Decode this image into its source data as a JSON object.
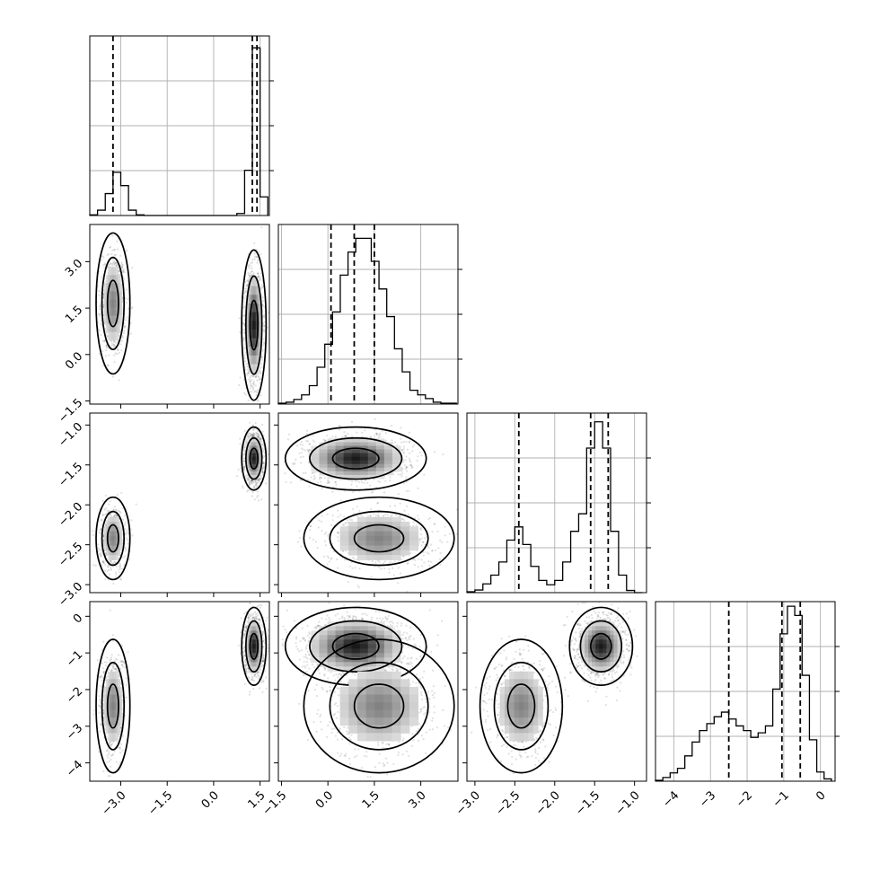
{
  "chart_data": {
    "type": "corner",
    "grid": true,
    "colors": {
      "ink": "#000000",
      "grid": "#b0b0b0",
      "points": "#808080"
    },
    "parameters": [
      {
        "index": 0,
        "range": [
          -4.0,
          1.8
        ],
        "ticks": [
          "−3.0",
          "−1.5",
          "0.0",
          "1.5"
        ],
        "tick_values": [
          -3.0,
          -1.5,
          0.0,
          1.5
        ]
      },
      {
        "index": 1,
        "range": [
          -1.6,
          4.2
        ],
        "ticks": [
          "−1.5",
          "0.0",
          "1.5",
          "3.0"
        ],
        "tick_values": [
          -1.5,
          0.0,
          1.5,
          3.0
        ]
      },
      {
        "index": 2,
        "range": [
          -3.1,
          -0.85
        ],
        "ticks": [
          "−3.0",
          "−2.5",
          "−2.0",
          "−1.5",
          "−1.0"
        ],
        "tick_values": [
          -3.0,
          -2.5,
          -2.0,
          -1.5,
          -1.0
        ]
      },
      {
        "index": 3,
        "range": [
          -4.5,
          0.4
        ],
        "ticks": [
          "−4",
          "−3",
          "−2",
          "−1",
          "0"
        ],
        "tick_values": [
          -4,
          -3,
          -2,
          -1,
          0
        ]
      }
    ],
    "histograms": [
      {
        "param": 0,
        "bins": [
          -4.0,
          -3.75,
          -3.5,
          -3.25,
          -3.0,
          -2.75,
          -2.5,
          -2.25,
          -2.0,
          -1.75,
          -1.5,
          -1.25,
          -1.0,
          -0.75,
          -0.5,
          -0.25,
          0.0,
          0.25,
          0.5,
          0.75,
          1.0,
          1.25,
          1.5,
          1.75
        ],
        "counts": [
          1,
          8,
          33,
          65,
          45,
          8,
          1,
          0,
          0,
          0,
          0,
          0,
          0,
          0,
          0,
          0,
          0,
          0,
          0,
          3,
          68,
          252,
          28
        ],
        "ymax": 270,
        "quantiles": [
          -3.25,
          1.25,
          1.4
        ]
      },
      {
        "param": 1,
        "bins": [
          -1.6,
          -1.35,
          -1.1,
          -0.85,
          -0.6,
          -0.35,
          -0.1,
          0.15,
          0.4,
          0.65,
          0.9,
          1.15,
          1.4,
          1.65,
          1.9,
          2.15,
          2.4,
          2.65,
          2.9,
          3.15,
          3.4,
          3.65,
          3.9,
          4.15
        ],
        "counts": [
          1,
          2,
          5,
          10,
          20,
          40,
          65,
          100,
          140,
          165,
          180,
          180,
          155,
          125,
          95,
          60,
          35,
          15,
          10,
          6,
          2,
          1,
          1
        ],
        "ymax": 195,
        "quantiles": [
          0.1,
          0.85,
          1.5
        ]
      },
      {
        "param": 2,
        "bins": [
          -3.1,
          -3.0,
          -2.9,
          -2.8,
          -2.7,
          -2.6,
          -2.5,
          -2.4,
          -2.3,
          -2.2,
          -2.1,
          -2.0,
          -1.9,
          -1.8,
          -1.7,
          -1.6,
          -1.5,
          -1.4,
          -1.3,
          -1.2,
          -1.1,
          -1.0,
          -0.9
        ],
        "counts": [
          2,
          6,
          20,
          40,
          70,
          120,
          150,
          110,
          60,
          28,
          18,
          28,
          70,
          140,
          180,
          330,
          390,
          330,
          140,
          40,
          5,
          0
        ],
        "ymax": 410,
        "quantiles": [
          -2.45,
          -1.55,
          -1.33
        ]
      },
      {
        "param": 3,
        "bins": [
          -4.5,
          -4.3,
          -4.1,
          -3.9,
          -3.7,
          -3.5,
          -3.3,
          -3.1,
          -2.9,
          -2.7,
          -2.5,
          -2.3,
          -2.1,
          -1.9,
          -1.7,
          -1.5,
          -1.3,
          -1.1,
          -0.9,
          -0.7,
          -0.5,
          -0.3,
          -0.1,
          0.1,
          0.3
        ],
        "counts": [
          2,
          8,
          18,
          28,
          55,
          85,
          110,
          125,
          140,
          150,
          135,
          120,
          110,
          95,
          105,
          120,
          200,
          320,
          380,
          360,
          230,
          90,
          20,
          5
        ],
        "ymax": 390,
        "quantiles": [
          -2.5,
          -1.05,
          -0.55
        ]
      }
    ],
    "pairs": [
      {
        "x": 0,
        "y": 1,
        "modes": [
          {
            "cx": -3.25,
            "cy": 1.65,
            "sx": 0.18,
            "sy": 0.75,
            "n": 650
          },
          {
            "cx": 1.3,
            "cy": 0.95,
            "sx": 0.13,
            "sy": 0.8,
            "n": 1200
          }
        ]
      },
      {
        "x": 0,
        "y": 2,
        "modes": [
          {
            "cx": -3.25,
            "cy": -2.42,
            "sx": 0.18,
            "sy": 0.17,
            "n": 650
          },
          {
            "cx": 1.3,
            "cy": -1.42,
            "sx": 0.13,
            "sy": 0.13,
            "n": 1200
          }
        ]
      },
      {
        "x": 1,
        "y": 2,
        "modes": [
          {
            "cx": 0.9,
            "cy": -1.42,
            "sx": 0.75,
            "sy": 0.13,
            "n": 1200
          },
          {
            "cx": 1.65,
            "cy": -2.42,
            "sx": 0.8,
            "sy": 0.17,
            "n": 650
          }
        ]
      },
      {
        "x": 0,
        "y": 3,
        "modes": [
          {
            "cx": -3.25,
            "cy": -2.45,
            "sx": 0.18,
            "sy": 0.6,
            "n": 650
          },
          {
            "cx": 1.3,
            "cy": -0.82,
            "sx": 0.13,
            "sy": 0.35,
            "n": 1200
          }
        ]
      },
      {
        "x": 1,
        "y": 3,
        "modes": [
          {
            "cx": 0.9,
            "cy": -0.82,
            "sx": 0.75,
            "sy": 0.35,
            "n": 1200
          },
          {
            "cx": 1.65,
            "cy": -2.45,
            "sx": 0.8,
            "sy": 0.6,
            "n": 650
          }
        ]
      },
      {
        "x": 2,
        "y": 3,
        "modes": [
          {
            "cx": -1.42,
            "cy": -0.82,
            "sx": 0.13,
            "sy": 0.35,
            "n": 1200
          },
          {
            "cx": -2.42,
            "cy": -2.45,
            "sx": 0.17,
            "sy": 0.6,
            "n": 650
          }
        ]
      }
    ],
    "contour_levels": [
      0.39,
      0.86,
      0.99
    ]
  }
}
